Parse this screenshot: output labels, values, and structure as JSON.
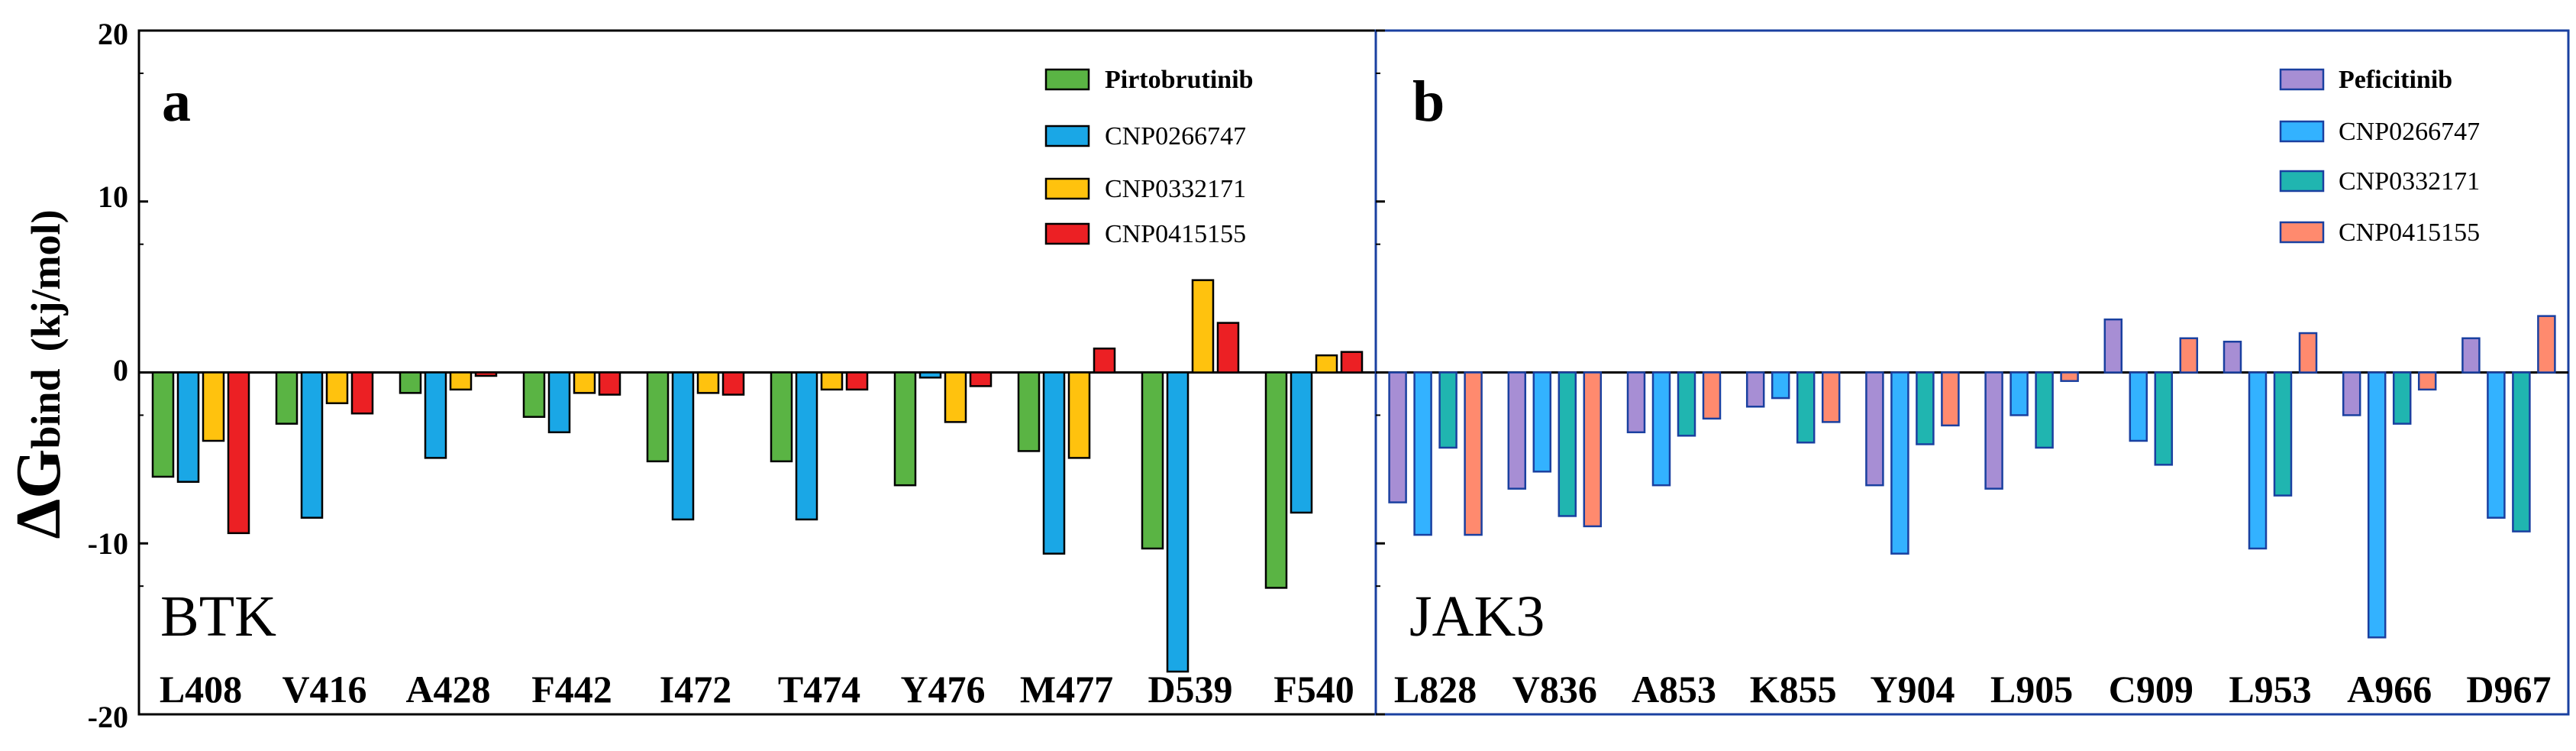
{
  "y_axis": {
    "label_symbol": "ΔG",
    "label_sub": "bind",
    "label_unit": "(kj/mol)",
    "ticks": [
      "20",
      "10",
      "0",
      "-10",
      "-20"
    ]
  },
  "colors": {
    "Pirtobrutinib": "#5ab444",
    "CNP0266747_a": "#1aa7e6",
    "CNP0332171_a": "#ffc20e",
    "CNP0415155_a": "#ec2024",
    "Peficitinib": "#a78ed4",
    "CNP0266747_b": "#33b2ff",
    "CNP0332171_b": "#20b5b0",
    "CNP0415155_b": "#ff8a6e",
    "border_a": "#000000",
    "border_b": "#1a40a0"
  },
  "chart_data": [
    {
      "type": "bar",
      "panel": "a",
      "kinase": "BTK",
      "title": "",
      "xlabel": "",
      "ylabel": "ΔGbind (kj/mol)",
      "ylim": [
        -20,
        20
      ],
      "legend_position": "top-right",
      "categories": [
        "L408",
        "V416",
        "A428",
        "F442",
        "I472",
        "T474",
        "Y476",
        "M477",
        "D539",
        "F540"
      ],
      "series": [
        {
          "name": "Pirtobrutinib",
          "values": [
            -6.1,
            -3.0,
            -1.2,
            -2.6,
            -5.2,
            -5.2,
            -6.6,
            -4.6,
            -10.3,
            -12.6
          ]
        },
        {
          "name": "CNP0266747",
          "values": [
            -6.4,
            -8.5,
            -5.0,
            -3.5,
            -8.6,
            -8.6,
            -0.3,
            -10.6,
            -17.5,
            -8.2
          ]
        },
        {
          "name": "CNP0332171",
          "values": [
            -4.0,
            -1.8,
            -1.0,
            -1.2,
            -1.2,
            -1.0,
            -2.9,
            -5.0,
            5.4,
            1.0
          ]
        },
        {
          "name": "CNP0415155",
          "values": [
            -9.4,
            -2.4,
            -0.2,
            -1.3,
            -1.3,
            -1.0,
            -0.8,
            1.4,
            2.9,
            1.2
          ]
        }
      ]
    },
    {
      "type": "bar",
      "panel": "b",
      "kinase": "JAK3",
      "title": "",
      "xlabel": "",
      "ylabel": "ΔGbind (kj/mol)",
      "ylim": [
        -20,
        20
      ],
      "legend_position": "top-right",
      "categories": [
        "L828",
        "V836",
        "A853",
        "K855",
        "Y904",
        "L905",
        "C909",
        "L953",
        "A966",
        "D967"
      ],
      "series": [
        {
          "name": "Peficitinib",
          "values": [
            -7.6,
            -6.8,
            -3.5,
            -2.0,
            -6.6,
            -6.8,
            3.1,
            1.8,
            -2.5,
            2.0
          ]
        },
        {
          "name": "CNP0266747",
          "values": [
            -9.5,
            -5.8,
            -6.6,
            -1.5,
            -10.6,
            -2.5,
            -4.0,
            -10.3,
            -15.5,
            -8.5
          ]
        },
        {
          "name": "CNP0332171",
          "values": [
            -4.4,
            -8.4,
            -3.7,
            -4.1,
            -4.2,
            -4.4,
            -5.4,
            -7.2,
            -3.0,
            -9.3
          ]
        },
        {
          "name": "CNP0415155",
          "values": [
            -9.5,
            -9.0,
            -2.7,
            -2.9,
            -3.1,
            -0.5,
            2.0,
            2.3,
            -1.0,
            3.3
          ]
        }
      ]
    }
  ]
}
